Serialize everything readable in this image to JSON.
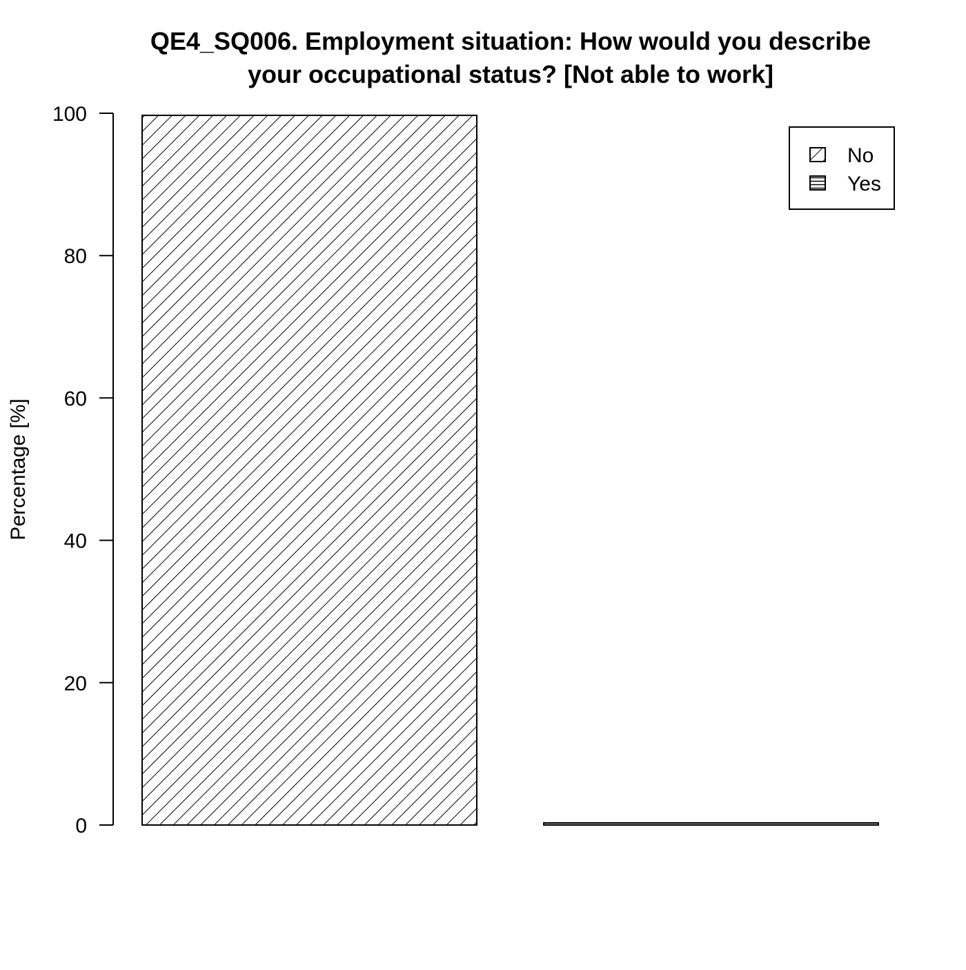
{
  "chart_data": {
    "type": "bar",
    "title": [
      "QE4_SQ006. Employment situation: How would you describe",
      "your occupational status? [Not able to work]"
    ],
    "y_label": "Percentage [%]",
    "categories": [
      "No",
      "Yes"
    ],
    "values": [
      99.7,
      0.3
    ],
    "colors": [
      "#e8262b",
      "#1a1adb"
    ],
    "hatch": [
      "diagonal",
      "horizontal"
    ],
    "ylim": [
      0,
      100
    ],
    "yticks": [
      0,
      20,
      40,
      60,
      80,
      100
    ],
    "legend": "topright"
  }
}
